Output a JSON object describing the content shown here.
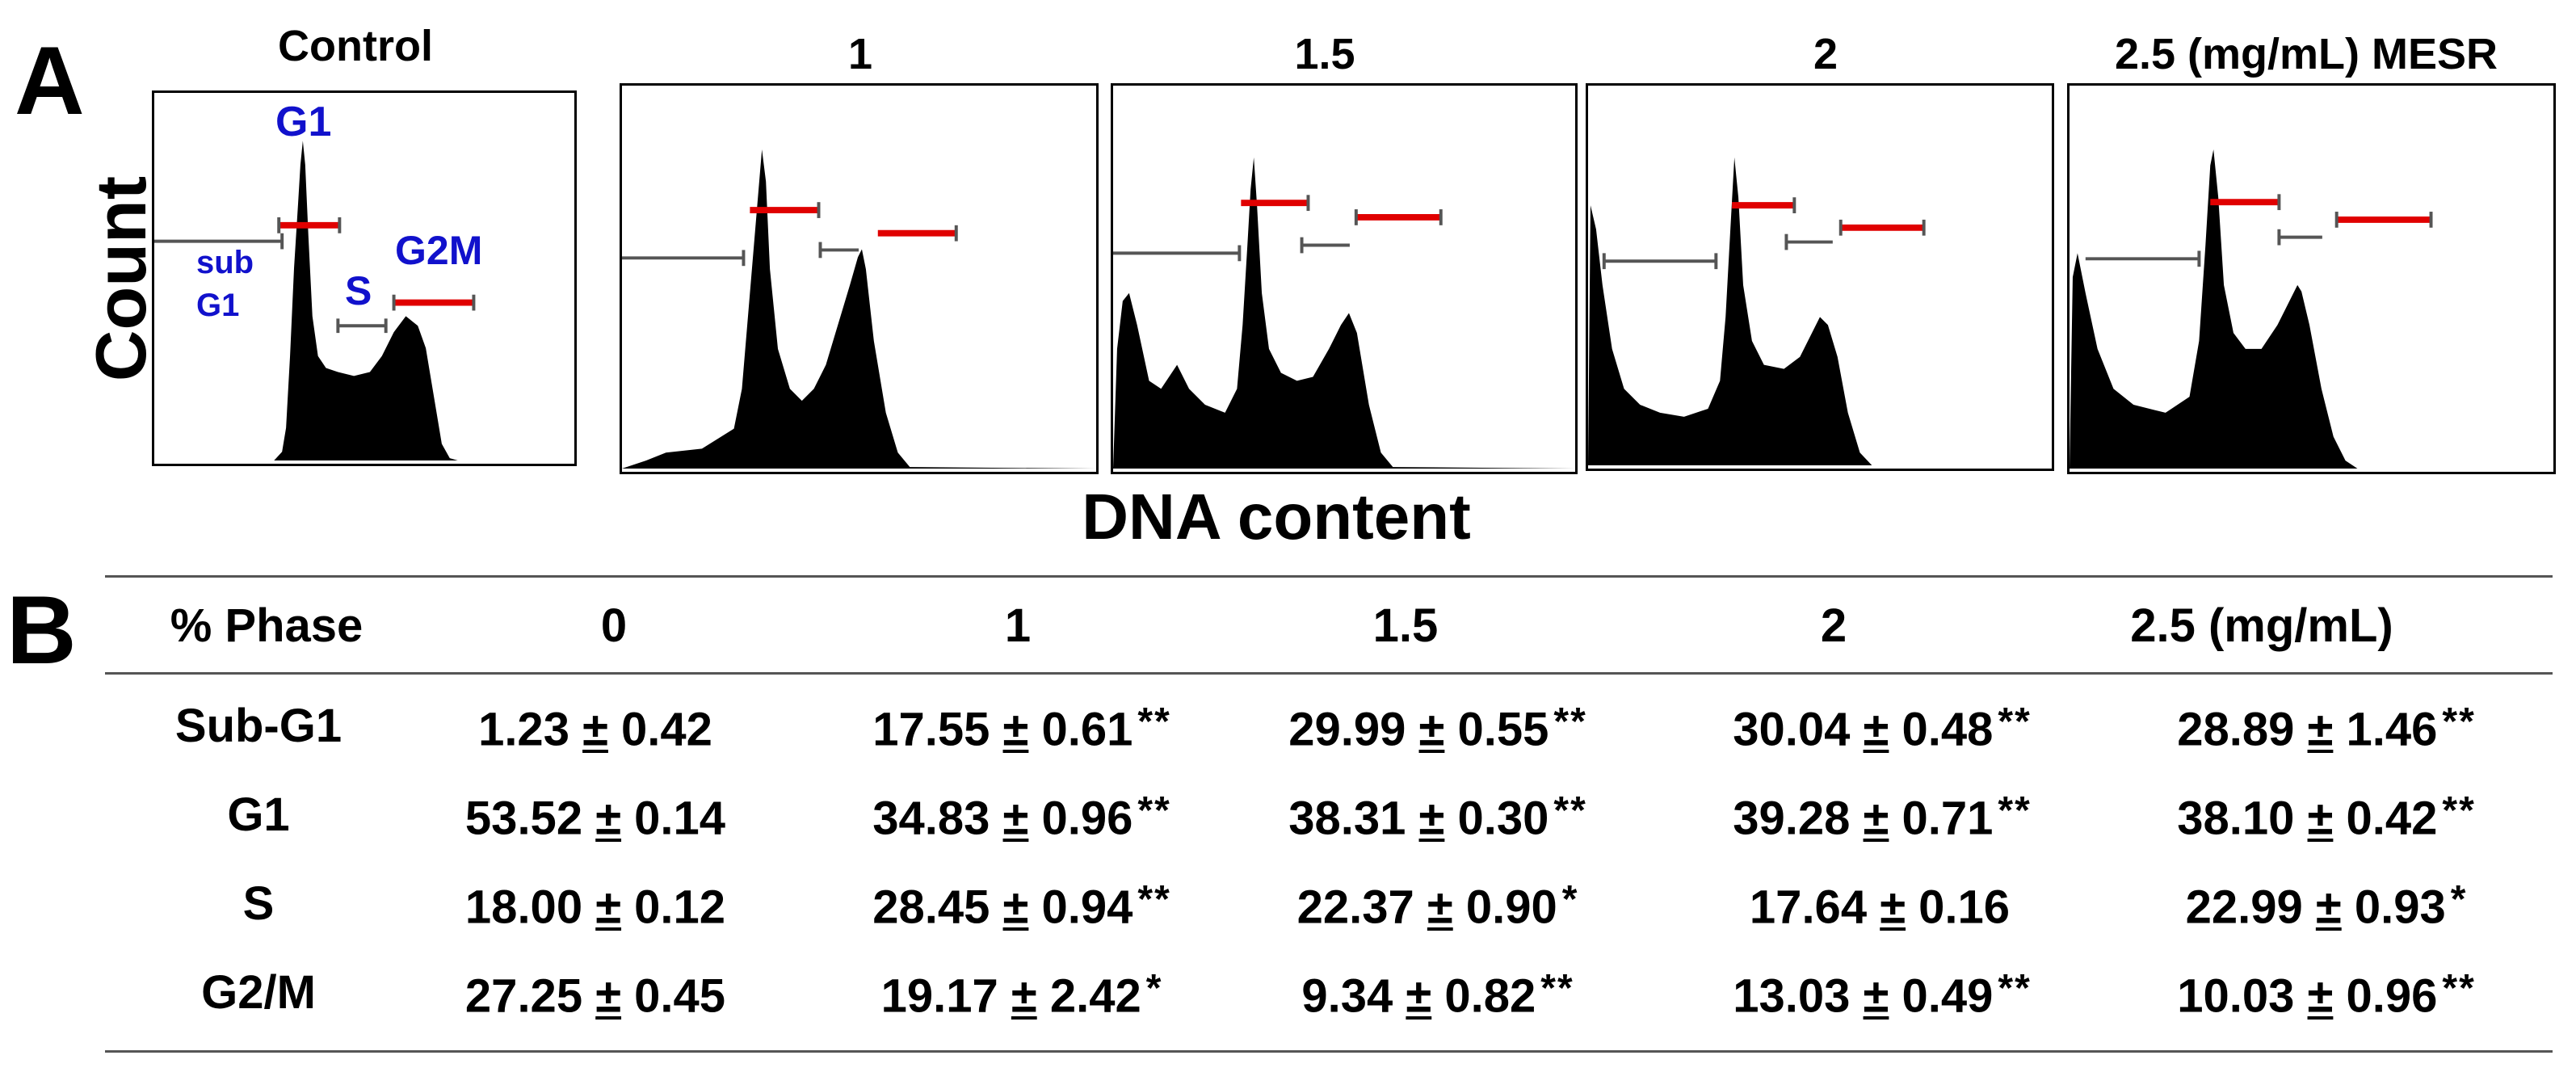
{
  "panel_a": {
    "letter": "A",
    "column_titles": [
      "Control",
      "1",
      "1.5",
      "2",
      "2.5 (mg/mL) MESR"
    ],
    "y_axis_label": "Count",
    "x_axis_label": "DNA content",
    "annotations": {
      "g1": "G1",
      "sub_g1_line1": "sub",
      "sub_g1_line2": "G1",
      "s": "S",
      "g2m": "G2M"
    },
    "colors": {
      "histogram": "#000000",
      "gate_gray": "#555555",
      "gate_red": "#e00000",
      "annotation": "#1111cc"
    }
  },
  "panel_b": {
    "letter": "B",
    "table": {
      "headers": [
        "% Phase",
        "0",
        "1",
        "1.5",
        "2",
        "2.5 (mg/mL)"
      ],
      "rows": [
        {
          "phase": "Sub-G1",
          "cells": [
            {
              "mean": "1.23",
              "pm": "±",
              "sd": "0.42",
              "sig": ""
            },
            {
              "mean": "17.55",
              "pm": "±",
              "sd": "0.61",
              "sig": "**"
            },
            {
              "mean": "29.99",
              "pm": "±",
              "sd": "0.55",
              "sig": "**"
            },
            {
              "mean": "30.04",
              "pm": "±",
              "sd": "0.48",
              "sig": "**"
            },
            {
              "mean": "28.89",
              "pm": "±",
              "sd": "1.46",
              "sig": "**"
            }
          ]
        },
        {
          "phase": "G1",
          "cells": [
            {
              "mean": "53.52",
              "pm": "±",
              "sd": "0.14",
              "sig": ""
            },
            {
              "mean": "34.83",
              "pm": "±",
              "sd": "0.96",
              "sig": "**"
            },
            {
              "mean": "38.31",
              "pm": "±",
              "sd": "0.30",
              "sig": "**"
            },
            {
              "mean": "39.28",
              "pm": "±",
              "sd": "0.71",
              "sig": "**"
            },
            {
              "mean": "38.10",
              "pm": "±",
              "sd": "0.42",
              "sig": "**"
            }
          ]
        },
        {
          "phase": "S",
          "cells": [
            {
              "mean": "18.00",
              "pm": "±",
              "sd": "0.12",
              "sig": ""
            },
            {
              "mean": "28.45",
              "pm": "±",
              "sd": "0.94",
              "sig": "**"
            },
            {
              "mean": "22.37",
              "pm": "±",
              "sd": "0.90",
              "sig": "*"
            },
            {
              "mean": "17.64",
              "pm": "±",
              "sd": "0.16",
              "sig": ""
            },
            {
              "mean": "22.99",
              "pm": "±",
              "sd": "0.93",
              "sig": "*"
            }
          ]
        },
        {
          "phase": "G2/M",
          "cells": [
            {
              "mean": "27.25",
              "pm": "±",
              "sd": "0.45",
              "sig": ""
            },
            {
              "mean": "19.17",
              "pm": "±",
              "sd": "2.42",
              "sig": "*"
            },
            {
              "mean": "9.34",
              "pm": "±",
              "sd": "0.82",
              "sig": "**"
            },
            {
              "mean": "13.03",
              "pm": "±",
              "sd": "0.49",
              "sig": "**"
            },
            {
              "mean": "10.03",
              "pm": "±",
              "sd": "0.96",
              "sig": "**"
            }
          ]
        }
      ]
    }
  }
}
